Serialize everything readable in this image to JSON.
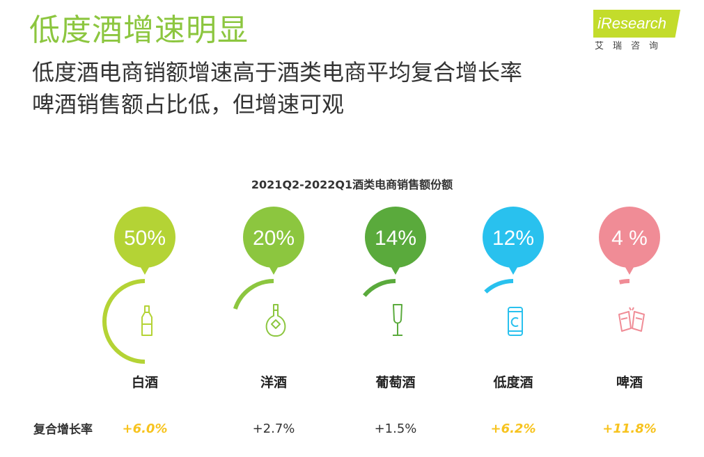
{
  "header": {
    "title": "低度酒增速明显",
    "subtitle_lines": [
      "低度酒电商销额增速高于酒类电商平均复合增长率",
      "啤酒销售额占比低，但增速可观"
    ]
  },
  "logo": {
    "name": "iResearch",
    "cn": "艾瑞咨询"
  },
  "chart_data": {
    "type": "bubble-gauge",
    "title": "2021Q2-2022Q1酒类电商销售额份额",
    "row_label": "复合增长率",
    "categories": [
      "白酒",
      "洋酒",
      "葡萄酒",
      "低度酒",
      "啤酒"
    ],
    "share_values": [
      50,
      20,
      14,
      12,
      4
    ],
    "share_labels": [
      "50%",
      "20%",
      "14%",
      "12%",
      "4 %"
    ],
    "growth_values": [
      6.0,
      2.7,
      1.5,
      6.2,
      11.8
    ],
    "growth_labels": [
      "+6.0%",
      "+2.7%",
      "+1.5%",
      "+6.2%",
      "+11.8%"
    ],
    "growth_highlight": [
      true,
      false,
      false,
      true,
      true
    ],
    "icons": [
      "baijiu-bottle-icon",
      "liquor-bottle-icon",
      "wine-glass-icon",
      "can-icon",
      "beer-mugs-icon"
    ],
    "colors": [
      "#b4d335",
      "#8cc63f",
      "#5aaa3c",
      "#29c1ee",
      "#f08c96"
    ],
    "highlight_color": "#f7c31e",
    "normal_text_color": "#333333"
  }
}
